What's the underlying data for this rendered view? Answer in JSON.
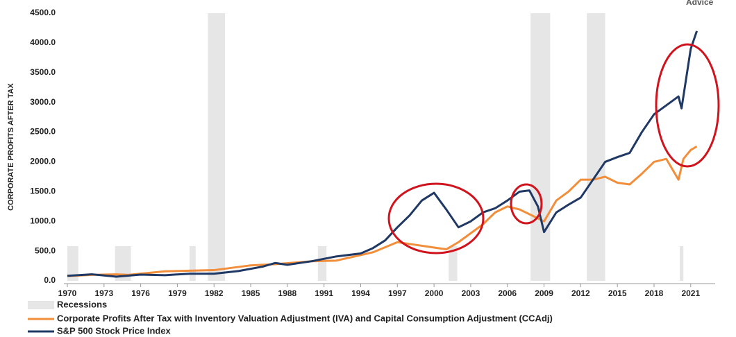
{
  "chart_data": {
    "type": "line",
    "logo_text": "Advice",
    "y_label": "CORPORATE PROFITS AFTER TAX",
    "xlim": [
      1970,
      2023
    ],
    "xticks": [
      1970,
      1973,
      1976,
      1979,
      1982,
      1985,
      1988,
      1991,
      1994,
      1997,
      2000,
      2003,
      2006,
      2009,
      2012,
      2015,
      2018,
      2021
    ],
    "ylim": [
      0,
      4500
    ],
    "yticks": [
      {
        "value": 0,
        "label": "0.0"
      },
      {
        "value": 500,
        "label": "500.0"
      },
      {
        "value": 1000,
        "label": "1000.0"
      },
      {
        "value": 1500,
        "label": "1500.0"
      },
      {
        "value": 2000,
        "label": "2000.0"
      },
      {
        "value": 2500,
        "label": "2500.0"
      },
      {
        "value": 3000,
        "label": "3000.0"
      },
      {
        "value": 3500,
        "label": "3500.0"
      },
      {
        "value": 4000,
        "label": "4000.0"
      },
      {
        "value": 4500,
        "label": "4500.0"
      }
    ],
    "recessions_label": "Recessions",
    "recessions_color": "#e6e6e6",
    "recessions": [
      [
        1970,
        1970.9
      ],
      [
        1973.9,
        1975.2
      ],
      [
        1980,
        1980.5
      ],
      [
        1981.5,
        1982.9
      ],
      [
        1990.5,
        1991.2
      ],
      [
        2001.2,
        2001.9
      ],
      [
        2007.9,
        2009.5
      ],
      [
        2012.5,
        2014
      ],
      [
        2020.1,
        2020.4
      ]
    ],
    "series": [
      {
        "name": "Corporate Profits After Tax with Inventory Valuation Adjustment (IVA) and Capital Consumption Adjustment (CCAdj)",
        "color": "#f28e3a",
        "x": [
          1970,
          1972,
          1974,
          1975,
          1978,
          1980,
          1982,
          1985,
          1987,
          1990,
          1992,
          1995,
          1997,
          1998,
          2000,
          2001,
          2002,
          2003,
          2004,
          2005,
          2006,
          2007,
          2008,
          2009,
          2010,
          2011,
          2012,
          2013,
          2014,
          2015,
          2016,
          2017,
          2018,
          2019,
          2020,
          2020.4,
          2021,
          2021.5
        ],
        "values": [
          80,
          100,
          110,
          100,
          160,
          170,
          180,
          260,
          280,
          330,
          340,
          480,
          650,
          620,
          560,
          530,
          650,
          800,
          950,
          1150,
          1250,
          1200,
          1100,
          1000,
          1350,
          1500,
          1700,
          1700,
          1750,
          1650,
          1620,
          1800,
          2000,
          2050,
          1700,
          2050,
          2200,
          2260
        ]
      },
      {
        "name": "S&P 500 Stock Price Index",
        "color": "#1f3864",
        "x": [
          1970,
          1972,
          1974,
          1976,
          1978,
          1980,
          1982,
          1984,
          1986,
          1987,
          1988,
          1990,
          1992,
          1994,
          1995,
          1996,
          1997,
          1998,
          1999,
          2000,
          2001,
          2002,
          2003,
          2004,
          2005,
          2006,
          2007,
          2007.8,
          2008.5,
          2009,
          2010,
          2011,
          2012,
          2013,
          2014,
          2015,
          2016,
          2017,
          2018,
          2019,
          2020,
          2020.25,
          2021,
          2021.5
        ],
        "values": [
          85,
          110,
          70,
          105,
          95,
          120,
          120,
          165,
          240,
          300,
          270,
          330,
          410,
          460,
          550,
          680,
          900,
          1100,
          1350,
          1480,
          1200,
          900,
          1000,
          1150,
          1220,
          1350,
          1500,
          1520,
          1250,
          820,
          1150,
          1280,
          1400,
          1700,
          2000,
          2080,
          2150,
          2500,
          2800,
          2950,
          3100,
          2900,
          3900,
          4200
        ]
      }
    ]
  }
}
